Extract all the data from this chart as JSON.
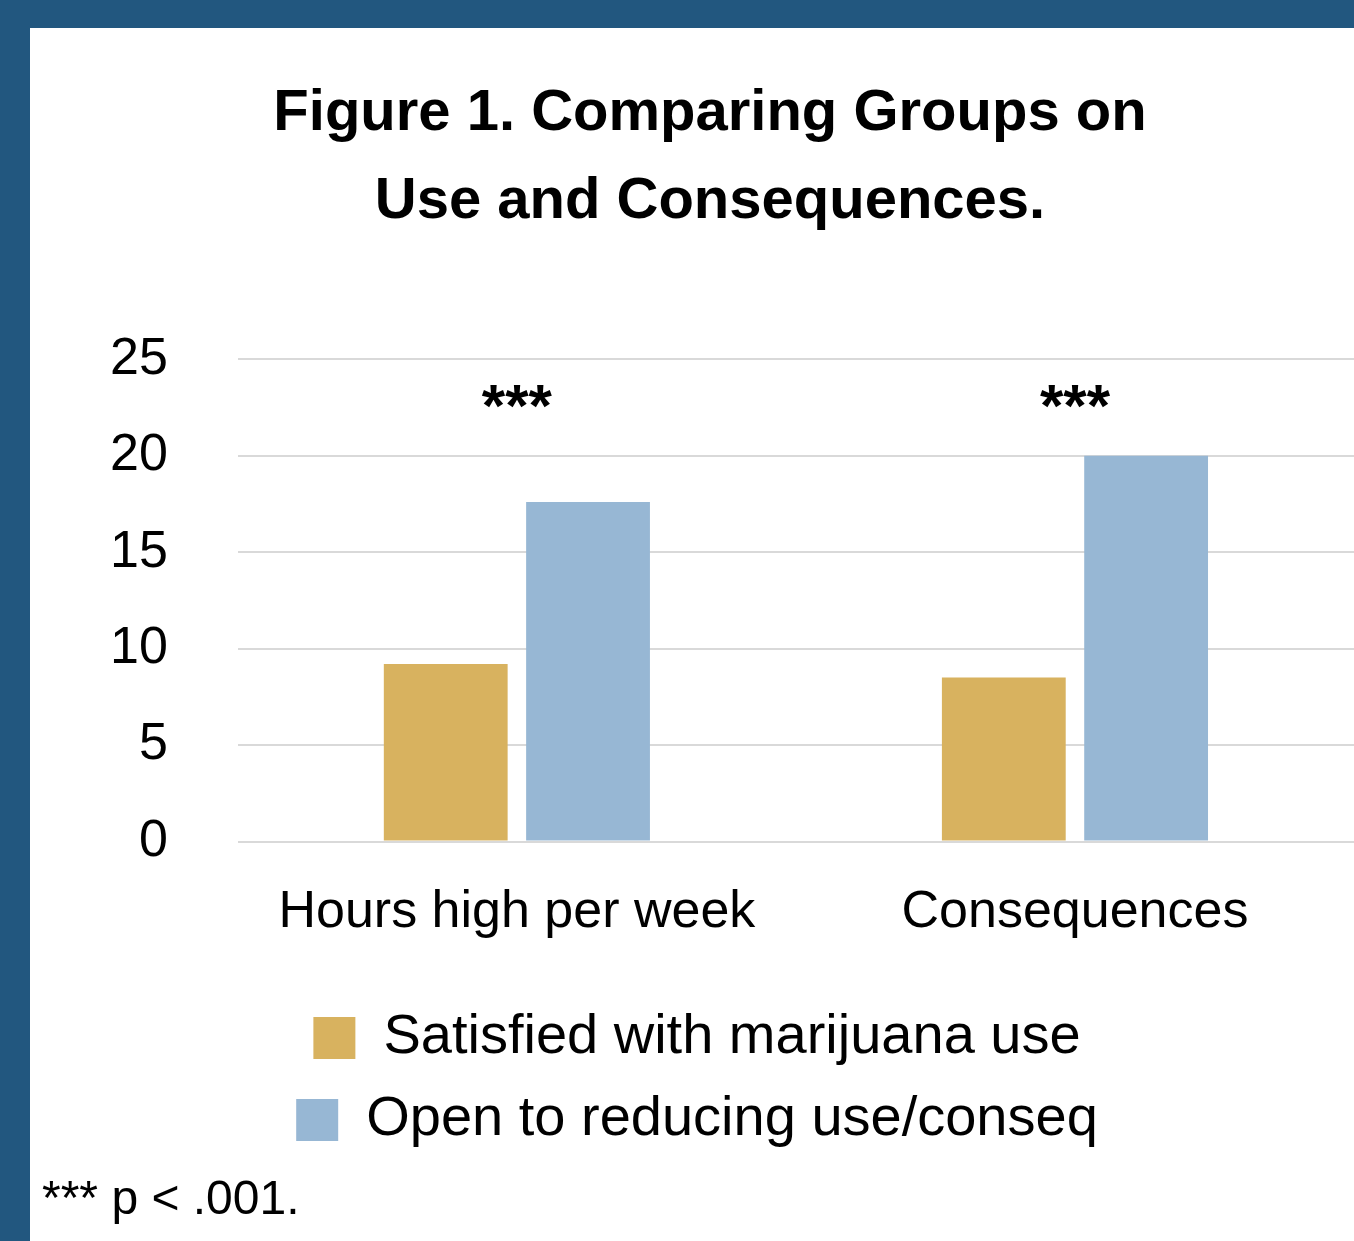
{
  "chart_data": {
    "type": "bar",
    "title": "Figure 1. Comparing Groups on Use and Consequences.",
    "categories": [
      "Hours high per week",
      "Consequences"
    ],
    "series": [
      {
        "name": "Satisfied with marijuana use",
        "color": "#d8b25f",
        "values": [
          9.2,
          8.5
        ]
      },
      {
        "name": "Open to reducing use/conseq",
        "color": "#97b7d4",
        "values": [
          17.6,
          20.0
        ]
      }
    ],
    "ylim": [
      0,
      25
    ],
    "yticks": [
      0,
      5,
      10,
      15,
      20,
      25
    ],
    "grid": "y",
    "legend": "bottom",
    "annotations": [
      "***",
      "***",
      "*** p < .001."
    ]
  }
}
